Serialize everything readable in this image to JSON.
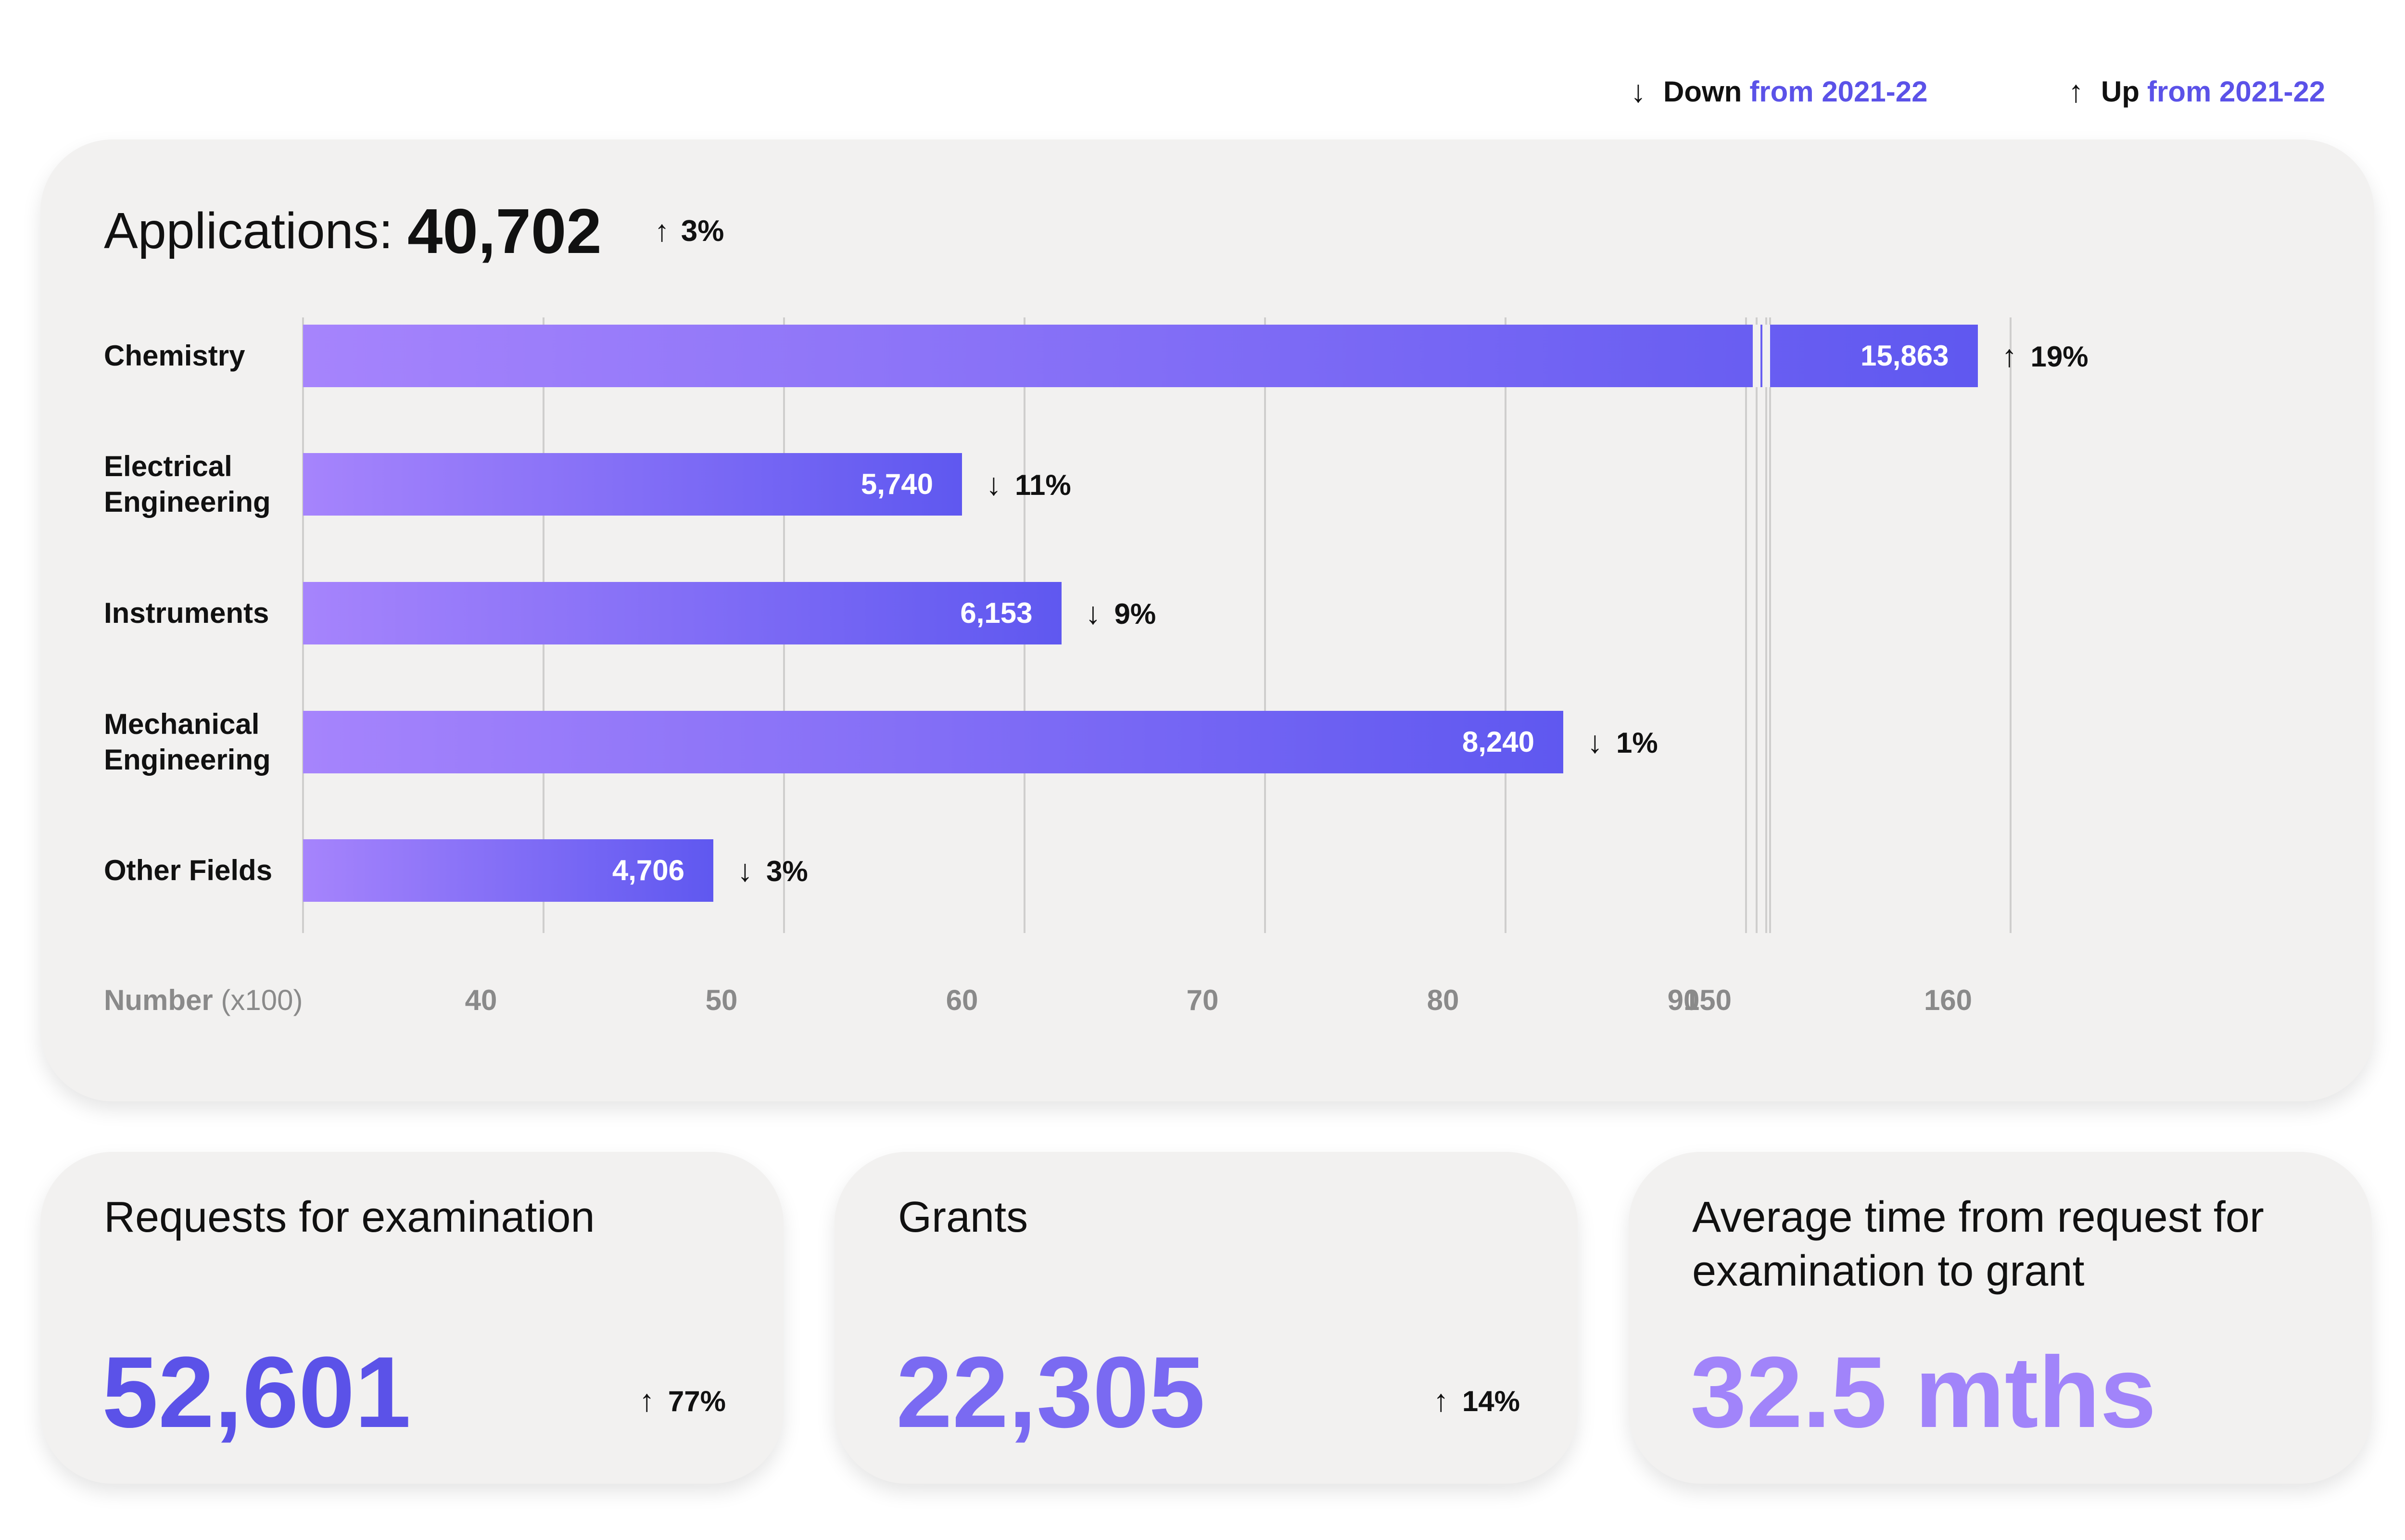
{
  "legend": {
    "down": {
      "arrow": "↓",
      "word": "Down",
      "from": "from 2021-22"
    },
    "up": {
      "arrow": "↑",
      "word": "Up",
      "from": "from 2021-22"
    }
  },
  "applications": {
    "label": "Applications:",
    "value": "40,702",
    "change_arrow": "↑",
    "change": "3%"
  },
  "chart_data": {
    "type": "bar",
    "orientation": "horizontal",
    "title": "Applications: 40,702",
    "xlabel": "Number (x100)",
    "xlabel_bold": "Number",
    "xlabel_unit": "(x100)",
    "axis_break": "between 90 and 150",
    "xticks": [
      "40",
      "50",
      "60",
      "70",
      "80",
      "90",
      "150",
      "160"
    ],
    "categories": [
      {
        "name": "Chemistry",
        "lines": [
          "Chemistry"
        ],
        "value": 15863,
        "value_label": "15,863",
        "change_arrow": "↑",
        "change": "19%"
      },
      {
        "name": "Electrical Engineering",
        "lines": [
          "Electrical",
          "Engineering"
        ],
        "value": 5740,
        "value_label": "5,740",
        "change_arrow": "↓",
        "change": "11%"
      },
      {
        "name": "Instruments",
        "lines": [
          "Instruments"
        ],
        "value": 6153,
        "value_label": "6,153",
        "change_arrow": "↓",
        "change": "9%"
      },
      {
        "name": "Mechanical Engineering",
        "lines": [
          "Mechanical",
          "Engineering"
        ],
        "value": 8240,
        "value_label": "8,240",
        "change_arrow": "↓",
        "change": "1%"
      },
      {
        "name": "Other Fields",
        "lines": [
          "Other Fields"
        ],
        "value": 4706,
        "value_label": "4,706",
        "change_arrow": "↓",
        "change": "3%"
      }
    ]
  },
  "stats": [
    {
      "title": "Requests for examination",
      "value": "52,601",
      "change_arrow": "↑",
      "change": "77%",
      "color": "#5b52e8"
    },
    {
      "title": "Grants",
      "value": "22,305",
      "change_arrow": "↑",
      "change": "14%",
      "color": "#7a6af2"
    },
    {
      "title": "Average time from request for examination to grant",
      "value": "32.5 mths",
      "change_arrow": "",
      "change": "",
      "color": "#a184fa"
    }
  ]
}
